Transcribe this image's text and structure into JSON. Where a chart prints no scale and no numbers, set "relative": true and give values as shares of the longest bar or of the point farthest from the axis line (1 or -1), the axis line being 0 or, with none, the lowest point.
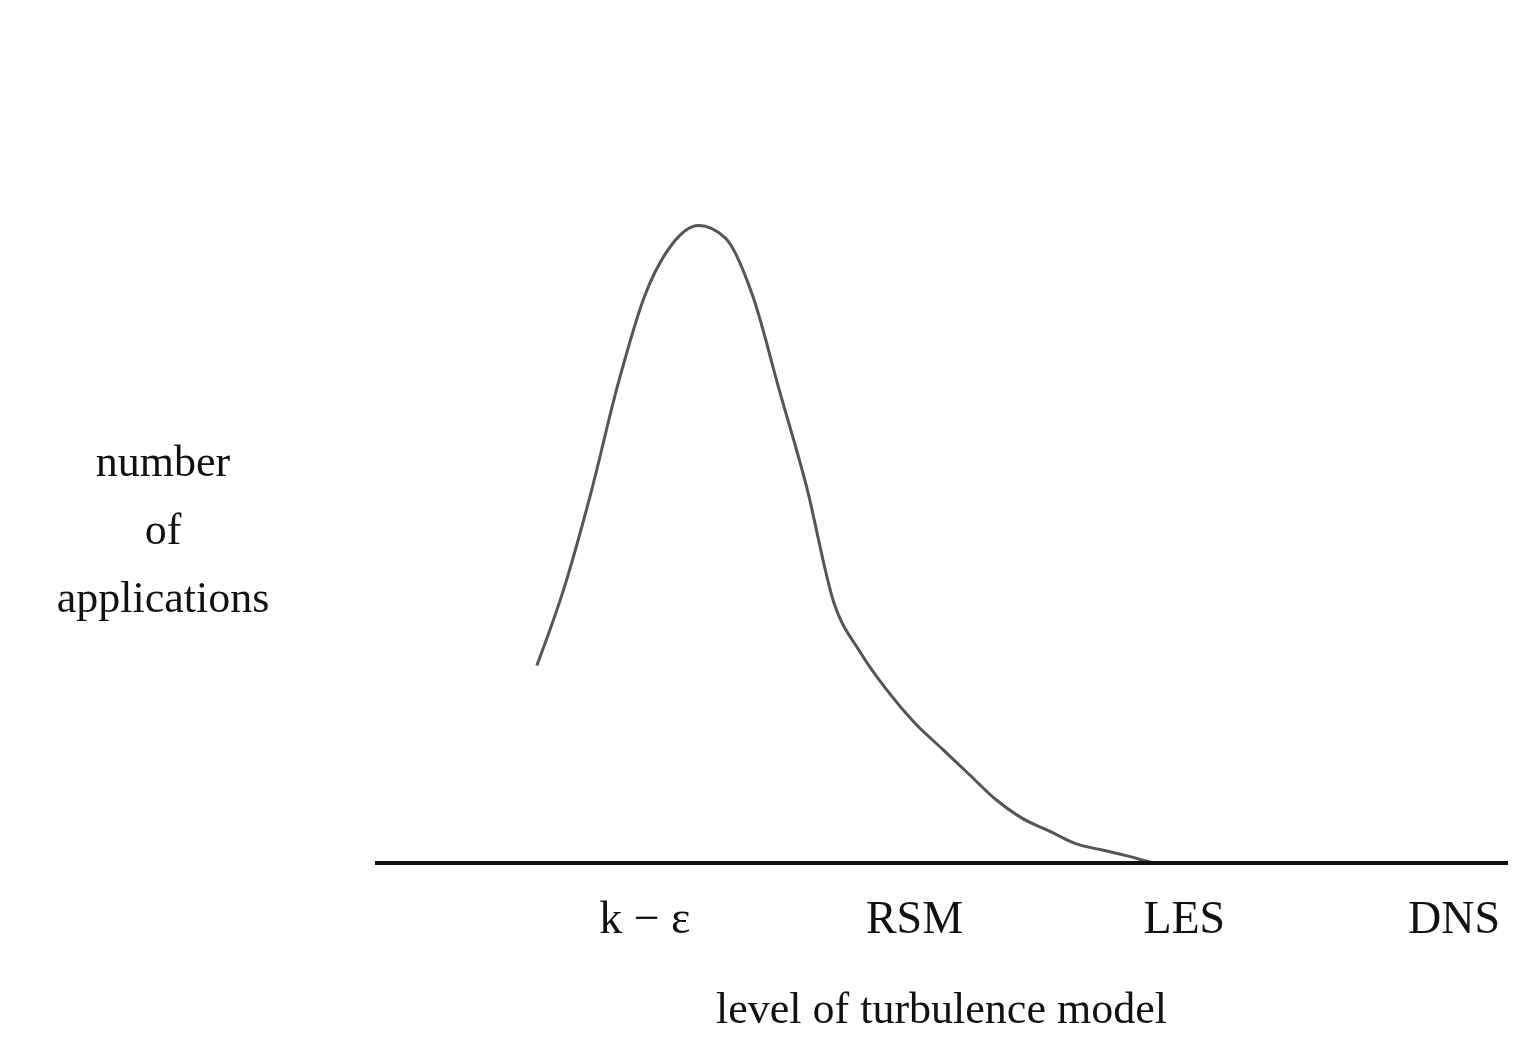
{
  "chart_data": {
    "type": "line",
    "relative": true,
    "xlabel": "level of turbulence model",
    "ylabel": "number of applications",
    "categories": [
      null,
      null,
      null,
      null,
      null,
      null,
      null,
      null,
      null,
      null,
      "k − ε",
      null,
      null,
      null,
      null,
      null,
      null,
      null,
      null,
      null,
      "RSM",
      null,
      null,
      null,
      null,
      null,
      null,
      null,
      null,
      null,
      "LES",
      null,
      null,
      null,
      null,
      null,
      null,
      null,
      null,
      null,
      "DNS",
      null,
      null
    ],
    "series": [
      {
        "color": "#555555",
        "values": [
          null,
          null,
          null,
          null,
          null,
          null,
          0.31,
          0.43,
          0.58,
          0.75,
          0.89,
          0.97,
          1,
          0.98,
          0.89,
          0.74,
          0.59,
          0.41,
          0.33,
          0.27,
          0.22,
          0.18,
          0.14,
          0.1,
          0.07,
          0.05,
          0.03,
          0.02,
          0.01,
          0,
          0,
          null,
          null,
          null,
          null,
          null,
          null,
          null,
          null,
          null,
          null,
          null,
          null
        ]
      }
    ],
    "grid": false,
    "legend": false,
    "marker": "none",
    "line_style": "solid"
  }
}
